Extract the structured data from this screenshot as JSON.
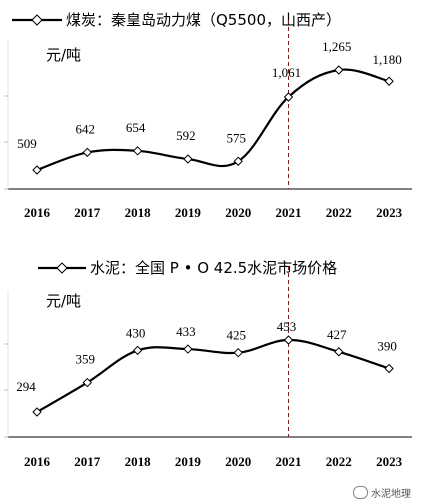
{
  "chart_data": [
    {
      "type": "line",
      "legend": "煤炭：秦皇岛动力煤（Q5500，山西产）",
      "unit_label": "元/吨",
      "x": [
        "2016",
        "2017",
        "2018",
        "2019",
        "2020",
        "2021",
        "2022",
        "2023"
      ],
      "values": [
        509,
        642,
        654,
        592,
        575,
        1061,
        1265,
        1180
      ],
      "data_labels": [
        "509",
        "642",
        "654",
        "592",
        "575",
        "1,061",
        "1,265",
        "1,180"
      ],
      "reference_line": {
        "x": "2021",
        "color": "#c00000",
        "style": "dashed"
      },
      "line_color": "#000000"
    },
    {
      "type": "line",
      "legend": "水泥：全国 P • O 42.5水泥市场价格",
      "unit_label": "元/吨",
      "x": [
        "2016",
        "2017",
        "2018",
        "2019",
        "2020",
        "2021",
        "2022",
        "2023"
      ],
      "values": [
        294,
        359,
        430,
        433,
        425,
        453,
        427,
        390
      ],
      "data_labels": [
        "294",
        "359",
        "430",
        "433",
        "425",
        "453",
        "427",
        "390"
      ],
      "reference_line": {
        "x": "2021",
        "color": "#c00000",
        "style": "dashed"
      },
      "line_color": "#000000"
    }
  ],
  "watermark": "水泥地理"
}
